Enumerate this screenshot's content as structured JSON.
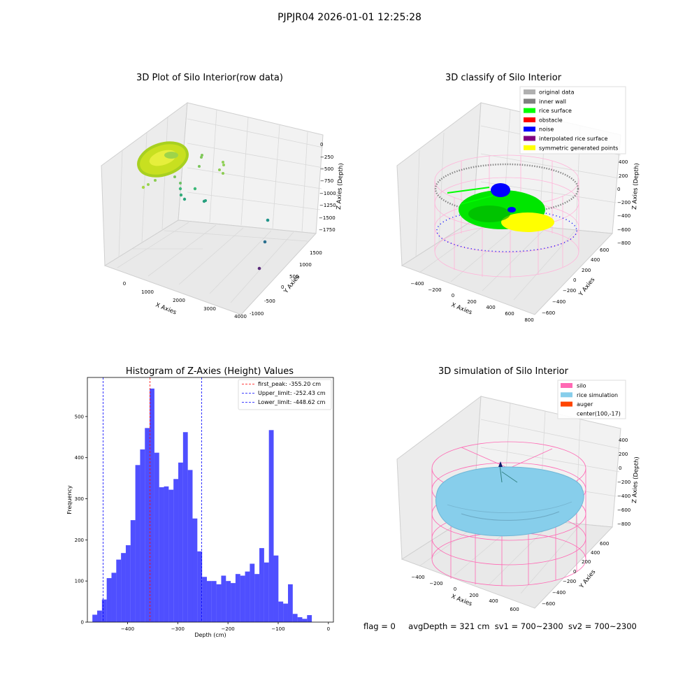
{
  "suptitle": "PJPJR04 2026-01-01 12:25:28",
  "panels": {
    "raw": {
      "title": "3D Plot of Silo Interior(row data)",
      "xlabel": "X Axies",
      "ylabel": "Y Axies",
      "zlabel": "Z Axies (Depth)",
      "xticks": [
        "0",
        "1000",
        "2000",
        "3000",
        "4000"
      ],
      "yticks": [
        "-1000",
        "-500",
        "0",
        "500",
        "1000",
        "1500"
      ],
      "zticks": [
        "0",
        "−250",
        "−500",
        "−750",
        "−1000",
        "−1250",
        "−1500",
        "−1750"
      ]
    },
    "classify": {
      "title": "3D classify of Silo Interior",
      "xlabel": "X Axies",
      "ylabel": "Y Axies",
      "zlabel": "Z Axies (Depth)",
      "xticks": [
        "−400",
        "−200",
        "0",
        "200",
        "400",
        "600",
        "800"
      ],
      "yticks": [
        "−600",
        "−400",
        "−200",
        "0",
        "200",
        "400",
        "600"
      ],
      "zticks": [
        "400",
        "200",
        "0",
        "−200",
        "−400",
        "−600",
        "−800"
      ],
      "legend": [
        {
          "label": "original data",
          "color": "#b0b0b0"
        },
        {
          "label": "inner wall",
          "color": "#808080"
        },
        {
          "label": "rice surface",
          "color": "#00ff00"
        },
        {
          "label": "obstacle",
          "color": "#ff0000"
        },
        {
          "label": "noise",
          "color": "#0000ff"
        },
        {
          "label": "interpolated rice surface",
          "color": "#800080"
        },
        {
          "label": "symmetric generated points",
          "color": "#ffff00"
        }
      ]
    },
    "simulation": {
      "title": "3D simulation of Silo Interior",
      "xlabel": "X Axies",
      "ylabel": "Y Axies",
      "zlabel": "Z Axies (Depth)",
      "xticks": [
        "−400",
        "−200",
        "0",
        "200",
        "400",
        "600"
      ],
      "yticks": [
        "−600",
        "−400",
        "−200",
        "0",
        "200",
        "400",
        "600"
      ],
      "zticks": [
        "400",
        "200",
        "0",
        "−200",
        "−400",
        "−600",
        "−800"
      ],
      "legend": [
        {
          "label": "silo",
          "color": "#ff69b4"
        },
        {
          "label": "rice simulation",
          "color": "#87ceeb"
        },
        {
          "label": "auger",
          "color": "#ff4500"
        },
        {
          "label": "center(100,-17)",
          "color": ""
        }
      ]
    }
  },
  "status": {
    "flag": "flag = 0",
    "avg_depth": "avgDepth = 321 cm",
    "sv1": "sv1 = 700~2300",
    "sv2": "sv2 = 700~2300"
  },
  "chart_data": {
    "type": "bar",
    "title": "Histogram of Z-Axies (Height) Values",
    "xlabel": "Depth (cm)",
    "ylabel": "Frequency",
    "xlim": [
      -480,
      10
    ],
    "ylim": [
      0,
      595
    ],
    "bin_width": 9.5,
    "bin_start": -470,
    "xticks": [
      -400,
      -300,
      -200,
      -100,
      0
    ],
    "xtick_labels": [
      "−400",
      "−300",
      "−200",
      "−100",
      "0"
    ],
    "yticks": [
      0,
      100,
      200,
      300,
      400,
      500
    ],
    "values": [
      18,
      28,
      55,
      107,
      120,
      152,
      168,
      187,
      248,
      382,
      420,
      472,
      568,
      412,
      328,
      330,
      322,
      348,
      388,
      462,
      370,
      252,
      172,
      110,
      100,
      100,
      92,
      113,
      100,
      95,
      117,
      113,
      123,
      142,
      117,
      180,
      145,
      467,
      162,
      50,
      45,
      92,
      20,
      12,
      8,
      17
    ],
    "lines": [
      {
        "label": "first_peak: -355.20 cm",
        "x": -355.2,
        "color": "#ff0000"
      },
      {
        "label": "Upper_limit: -252.43 cm",
        "x": -252.43,
        "color": "#0000ff"
      },
      {
        "label": "Lower_limit: -448.62 cm",
        "x": -448.62,
        "color": "#0000ff"
      }
    ]
  }
}
